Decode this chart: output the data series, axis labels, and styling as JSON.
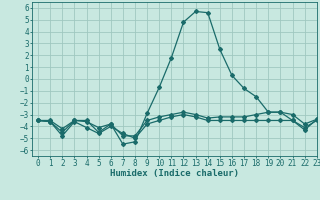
{
  "xlabel": "Humidex (Indice chaleur)",
  "xlim": [
    -0.5,
    23
  ],
  "ylim": [
    -6.5,
    6.5
  ],
  "xticks": [
    0,
    1,
    2,
    3,
    4,
    5,
    6,
    7,
    8,
    9,
    10,
    11,
    12,
    13,
    14,
    15,
    16,
    17,
    18,
    19,
    20,
    21,
    22,
    23
  ],
  "yticks": [
    -6,
    -5,
    -4,
    -3,
    -2,
    -1,
    0,
    1,
    2,
    3,
    4,
    5,
    6
  ],
  "background_color": "#c8e8e0",
  "grid_color": "#a0c8c0",
  "line_color": "#1a6b6a",
  "line1_x": [
    0,
    1,
    2,
    3,
    4,
    5,
    6,
    7,
    8,
    9,
    10,
    11,
    12,
    13,
    14,
    15,
    16,
    17,
    18,
    19,
    20,
    21,
    22,
    23
  ],
  "line1_y": [
    -3.5,
    -3.6,
    -4.5,
    -3.5,
    -3.5,
    -4.5,
    -3.8,
    -5.5,
    -5.3,
    -2.9,
    -0.7,
    1.8,
    4.8,
    5.7,
    5.6,
    2.5,
    0.3,
    -0.8,
    -1.5,
    -2.8,
    -2.8,
    -3.5,
    -4.1,
    -3.5
  ],
  "line2_x": [
    0,
    1,
    2,
    3,
    4,
    5,
    6,
    7,
    8,
    9,
    10,
    11,
    12,
    13,
    14,
    15,
    16,
    17,
    18,
    19,
    20,
    21,
    22,
    23
  ],
  "line2_y": [
    -3.5,
    -3.6,
    -4.8,
    -3.6,
    -4.1,
    -4.6,
    -4.0,
    -4.6,
    -5.0,
    -3.8,
    -3.5,
    -3.2,
    -3.0,
    -3.2,
    -3.5,
    -3.5,
    -3.5,
    -3.5,
    -3.5,
    -3.5,
    -3.5,
    -3.5,
    -4.3,
    -3.4
  ],
  "line3_x": [
    0,
    1,
    2,
    3,
    4,
    5,
    6,
    7,
    8,
    9,
    10,
    11,
    12,
    13,
    14,
    15,
    16,
    17,
    18,
    19,
    20,
    21,
    22,
    23
  ],
  "line3_y": [
    -3.5,
    -3.5,
    -4.2,
    -3.5,
    -3.6,
    -4.1,
    -3.8,
    -4.8,
    -4.8,
    -3.5,
    -3.2,
    -3.0,
    -2.8,
    -3.0,
    -3.3,
    -3.2,
    -3.2,
    -3.2,
    -3.0,
    -2.8,
    -2.8,
    -3.0,
    -3.8,
    -3.4
  ],
  "tick_fontsize": 5.5,
  "xlabel_fontsize": 6.5,
  "marker_size": 2.0,
  "linewidth": 0.9
}
